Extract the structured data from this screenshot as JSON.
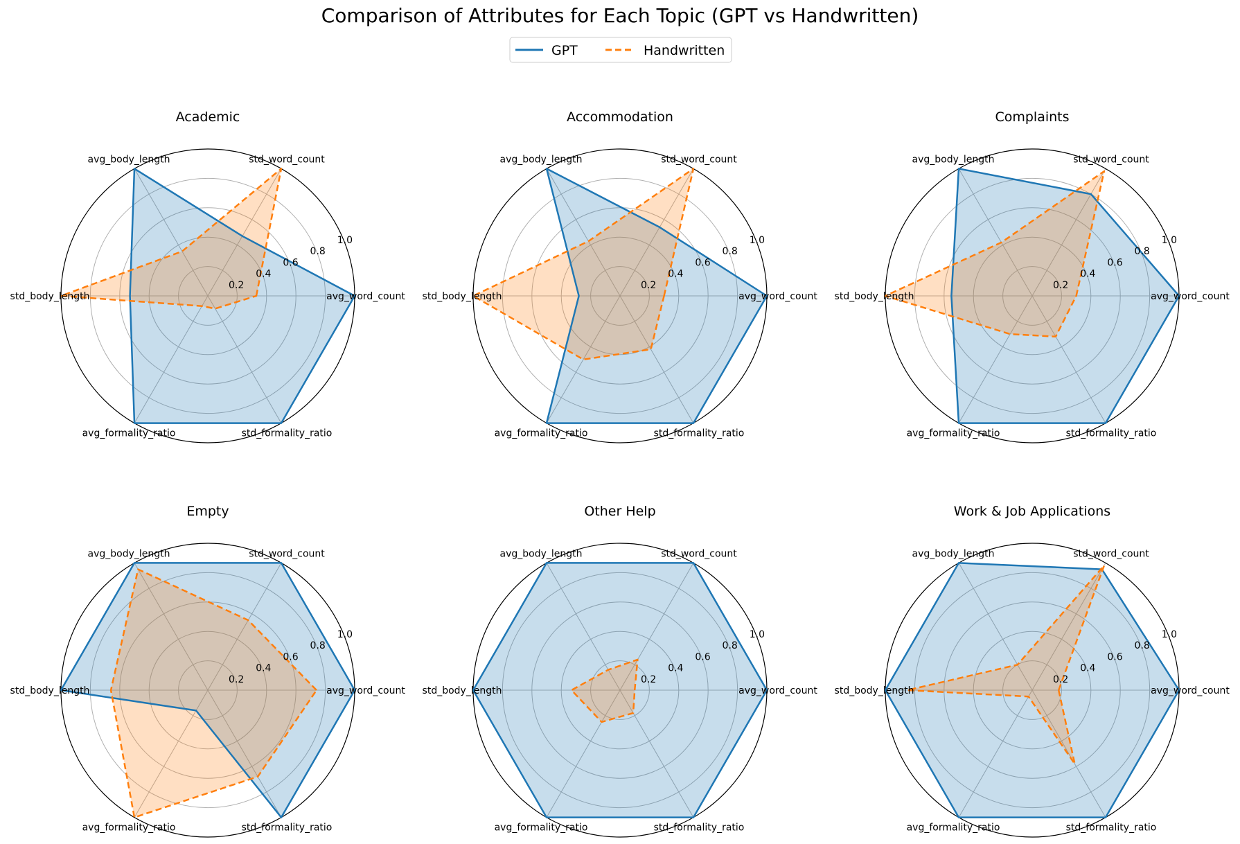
{
  "figure": {
    "title": "Comparison of Attributes for Each Topic (GPT vs Handwritten)"
  },
  "legend": {
    "placement": "top-center",
    "entries": [
      {
        "name": "GPT",
        "color": "#1f77b4",
        "style": "solid"
      },
      {
        "name": "Handwritten",
        "color": "#ff7f0e",
        "style": "dashed"
      }
    ]
  },
  "chart_data": [
    {
      "type": "radar",
      "title": "Academic",
      "axes": [
        "avg_word_count",
        "std_word_count",
        "avg_body_length",
        "std_body_length",
        "avg_formality_ratio",
        "std_formality_ratio"
      ],
      "rticks": [
        0.2,
        0.4,
        0.6,
        0.8,
        1.0
      ],
      "rlim": [
        0,
        1.0
      ],
      "grid": true,
      "series": [
        {
          "name": "GPT",
          "values": [
            1.0,
            0.47,
            1.0,
            0.53,
            1.0,
            1.0
          ]
        },
        {
          "name": "Handwritten",
          "values": [
            0.33,
            1.0,
            0.35,
            1.0,
            0.08,
            0.1
          ]
        }
      ]
    },
    {
      "type": "radar",
      "title": "Accommodation",
      "axes": [
        "avg_word_count",
        "std_word_count",
        "avg_body_length",
        "std_body_length",
        "avg_formality_ratio",
        "std_formality_ratio"
      ],
      "rticks": [
        0.2,
        0.4,
        0.6,
        0.8,
        1.0
      ],
      "rlim": [
        0,
        1.0
      ],
      "grid": true,
      "series": [
        {
          "name": "GPT",
          "values": [
            1.0,
            0.54,
            1.0,
            0.28,
            1.0,
            1.0
          ]
        },
        {
          "name": "Handwritten",
          "values": [
            0.3,
            1.0,
            0.43,
            1.0,
            0.5,
            0.42
          ]
        }
      ]
    },
    {
      "type": "radar",
      "title": "Complaints",
      "axes": [
        "avg_word_count",
        "std_word_count",
        "avg_body_length",
        "std_body_length",
        "avg_formality_ratio",
        "std_formality_ratio"
      ],
      "rticks": [
        0.2,
        0.4,
        0.6,
        0.8,
        1.0
      ],
      "rlim": [
        0,
        1.0
      ],
      "grid": true,
      "series": [
        {
          "name": "GPT",
          "values": [
            1.0,
            0.8,
            1.0,
            0.55,
            1.0,
            1.0
          ]
        },
        {
          "name": "Handwritten",
          "values": [
            0.3,
            0.98,
            0.42,
            1.0,
            0.3,
            0.32
          ]
        }
      ]
    },
    {
      "type": "radar",
      "title": "Empty",
      "axes": [
        "avg_word_count",
        "std_word_count",
        "avg_body_length",
        "std_body_length",
        "avg_formality_ratio",
        "std_formality_ratio"
      ],
      "rticks": [
        0.2,
        0.4,
        0.6,
        0.8,
        1.0
      ],
      "rlim": [
        0,
        1.0
      ],
      "grid": true,
      "series": [
        {
          "name": "GPT",
          "values": [
            1.0,
            1.0,
            1.0,
            1.0,
            0.16,
            1.0
          ]
        },
        {
          "name": "Handwritten",
          "values": [
            0.74,
            0.55,
            0.95,
            0.66,
            1.0,
            0.68
          ]
        }
      ]
    },
    {
      "type": "radar",
      "title": "Other Help",
      "axes": [
        "avg_word_count",
        "std_word_count",
        "avg_body_length",
        "std_body_length",
        "avg_formality_ratio",
        "std_formality_ratio"
      ],
      "rticks": [
        0.2,
        0.4,
        0.6,
        0.8,
        1.0
      ],
      "rlim": [
        0,
        1.0
      ],
      "grid": true,
      "series": [
        {
          "name": "GPT",
          "values": [
            1.0,
            1.0,
            1.0,
            1.0,
            1.0,
            1.0
          ]
        },
        {
          "name": "Handwritten",
          "values": [
            0.1,
            0.24,
            0.16,
            0.33,
            0.25,
            0.18
          ]
        }
      ]
    },
    {
      "type": "radar",
      "title": "Work & Job Applications",
      "axes": [
        "avg_word_count",
        "std_word_count",
        "avg_body_length",
        "std_body_length",
        "avg_formality_ratio",
        "std_formality_ratio"
      ],
      "rticks": [
        0.2,
        0.4,
        0.6,
        0.8,
        1.0
      ],
      "rlim": [
        0,
        1.0
      ],
      "grid": true,
      "series": [
        {
          "name": "GPT",
          "values": [
            1.0,
            0.95,
            1.0,
            1.0,
            1.0,
            1.0
          ]
        },
        {
          "name": "Handwritten",
          "values": [
            0.18,
            0.98,
            0.2,
            0.85,
            0.05,
            0.58
          ]
        }
      ]
    }
  ]
}
